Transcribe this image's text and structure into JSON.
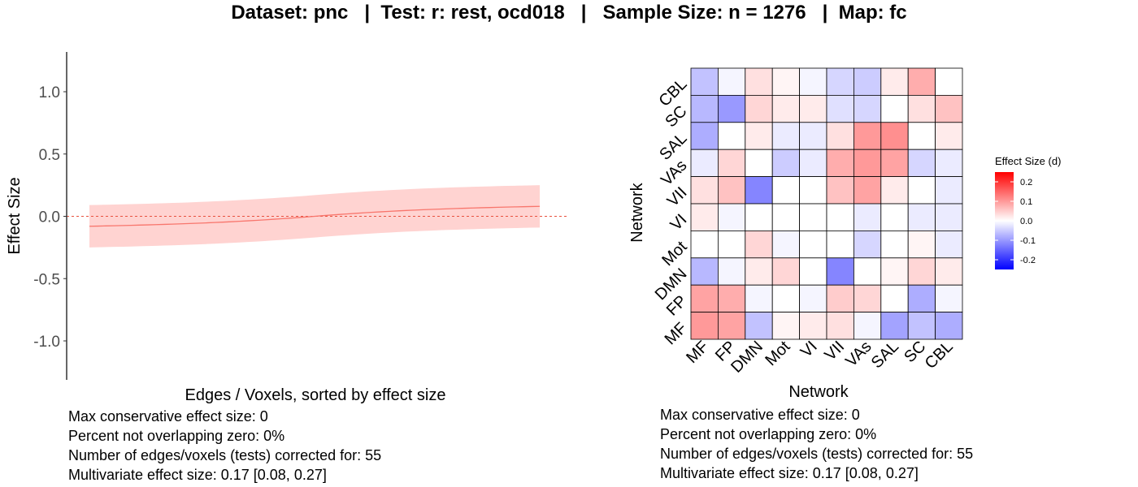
{
  "title": "Dataset: pnc   |  Test: r: rest, ocd018   |   Sample Size: n = 1276   |  Map: fc",
  "stats": [
    "Max conservative effect size: 0",
    "Percent not overlapping zero: 0%",
    "Number of edges/voxels (tests) corrected for: 55",
    "Multivariate effect size: 0.17 [0.08, 0.27]"
  ],
  "chart_data": [
    {
      "type": "line",
      "xlabel": "Edges / Voxels, sorted by effect size",
      "ylabel": "Effect Size",
      "ylim": [
        -1.3,
        1.3
      ],
      "yticks": [
        1.0,
        0.5,
        0.0,
        -0.5,
        -1.0
      ],
      "ytick_labels": [
        "1.0",
        "0.5",
        "0.0",
        "-0.5",
        "-1.0"
      ],
      "n_points": 55,
      "series_color": "#f8766d",
      "band_color": "#ffd3d1",
      "reference_line": 0,
      "estimate_start": -0.08,
      "estimate_end": 0.08,
      "band_halfwidth": 0.17
    },
    {
      "type": "heatmap",
      "xlabel": "Network",
      "ylabel": "Network",
      "networks": [
        "MF",
        "FP",
        "DMN",
        "Mot",
        "VI",
        "VII",
        "VAs",
        "SAL",
        "SC",
        "CBL"
      ],
      "rows_top_to_bottom": [
        "CBL",
        "SC",
        "SAL",
        "VAs",
        "VII",
        "VI",
        "Mot",
        "DMN",
        "FP",
        "MF"
      ],
      "values": [
        [
          -0.06,
          -0.01,
          0.03,
          0.01,
          -0.01,
          -0.04,
          -0.05,
          0.02,
          0.08,
          0.0
        ],
        [
          -0.07,
          -0.1,
          0.04,
          0.02,
          0.02,
          -0.03,
          -0.04,
          0.0,
          0.03,
          0.06
        ],
        [
          -0.08,
          0.0,
          0.02,
          -0.02,
          -0.02,
          0.03,
          0.1,
          0.11,
          0.0,
          0.02
        ],
        [
          -0.02,
          0.04,
          0.0,
          -0.05,
          -0.02,
          0.08,
          0.1,
          0.09,
          -0.04,
          -0.02
        ],
        [
          0.03,
          0.06,
          -0.12,
          0.0,
          0.0,
          0.06,
          0.09,
          0.02,
          0.0,
          -0.02
        ],
        [
          0.02,
          -0.01,
          0.0,
          0.0,
          0.0,
          0.0,
          -0.02,
          0.0,
          -0.02,
          -0.02
        ],
        [
          0.0,
          0.0,
          0.04,
          -0.01,
          0.0,
          0.0,
          -0.04,
          0.0,
          0.01,
          -0.02
        ],
        [
          -0.07,
          -0.01,
          0.02,
          0.04,
          0.0,
          -0.12,
          0.0,
          0.01,
          0.04,
          0.02
        ],
        [
          0.09,
          0.08,
          -0.01,
          0.0,
          -0.01,
          0.05,
          0.04,
          0.0,
          -0.08,
          -0.01
        ],
        [
          0.1,
          0.09,
          -0.06,
          0.01,
          0.02,
          0.03,
          -0.01,
          -0.09,
          -0.06,
          -0.08
        ]
      ],
      "color_scale": {
        "low": "#0000ff",
        "mid": "#ffffff",
        "high": "#ff0000",
        "limits": [
          -0.25,
          0.25
        ]
      },
      "legend": {
        "title": "Effect Size (d)",
        "ticks": [
          0.2,
          0.1,
          0.0,
          -0.1,
          -0.2
        ],
        "tick_labels": [
          "0.2",
          "0.1",
          "0.0",
          "-0.1",
          "-0.2"
        ],
        "position": "right"
      }
    }
  ]
}
